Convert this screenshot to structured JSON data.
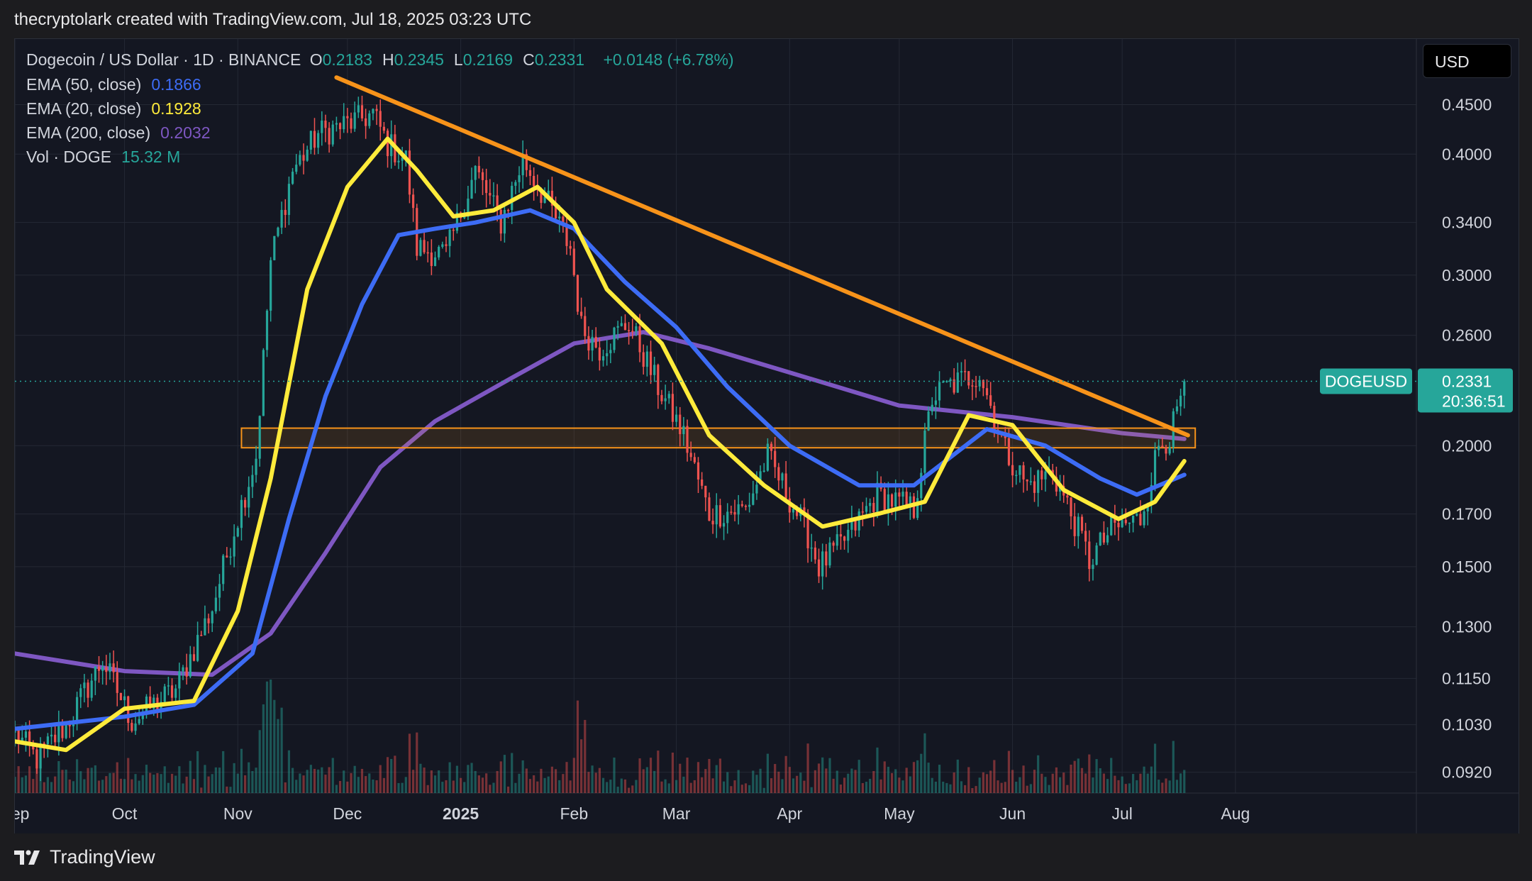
{
  "header": {
    "credit": "thecryptolark created with TradingView.com, Jul 18, 2025 03:23 UTC"
  },
  "legend": {
    "symbol": "Dogecoin / US Dollar · 1D · BINANCE",
    "ohlc": [
      {
        "k": "O",
        "v": "0.2183"
      },
      {
        "k": "H",
        "v": "0.2345"
      },
      {
        "k": "L",
        "v": "0.2169"
      },
      {
        "k": "C",
        "v": "0.2331"
      }
    ],
    "change": "+0.0148 (+6.78%)",
    "indicators": [
      {
        "label": "EMA (50, close)",
        "value": "0.1866",
        "color": "#3d6cf5"
      },
      {
        "label": "EMA (20, close)",
        "value": "0.1928",
        "color": "#ffeb3b"
      },
      {
        "label": "EMA (200, close)",
        "value": "0.2032",
        "color": "#7e57c2"
      },
      {
        "label": "Vol · DOGE",
        "value": "15.32 M",
        "color": "#26a69a"
      }
    ]
  },
  "currency": "USD",
  "price_tag": {
    "symbol": "DOGEUSD",
    "price": "0.2331",
    "countdown": "20:36:51",
    "color": "#26a69a"
  },
  "footer": {
    "brand": "TradingView"
  },
  "colors": {
    "up": "#26a69a",
    "down": "#ef5350",
    "trendline": "#f7931a",
    "zone": "#f7931a",
    "grid": "#242834",
    "background": "#141722"
  },
  "chart_data": {
    "type": "candlestick",
    "title": "Dogecoin / US Dollar · 1D · BINANCE",
    "y_scale": "log",
    "y_ticks": [
      "0.4500",
      "0.4000",
      "0.3400",
      "0.3000",
      "0.2600",
      "0.2000",
      "0.1700",
      "0.1500",
      "0.1300",
      "0.1150",
      "0.1030",
      "0.0920"
    ],
    "x_ticks": [
      "Sep",
      "Oct",
      "Nov",
      "Dec",
      "2025",
      "Feb",
      "Mar",
      "Apr",
      "May",
      "Jun",
      "Jul",
      "Aug"
    ],
    "x_range": [
      "2024-09-01",
      "2025-08-28"
    ],
    "y_range": [
      0.088,
      0.5
    ],
    "price_anchors": [
      {
        "date": "2024-09-01",
        "close": 0.101
      },
      {
        "date": "2024-09-07",
        "close": 0.095
      },
      {
        "date": "2024-09-15",
        "close": 0.103
      },
      {
        "date": "2024-09-25",
        "close": 0.12
      },
      {
        "date": "2024-10-03",
        "close": 0.104
      },
      {
        "date": "2024-10-15",
        "close": 0.112
      },
      {
        "date": "2024-10-25",
        "close": 0.136
      },
      {
        "date": "2024-10-31",
        "close": 0.164
      },
      {
        "date": "2024-11-06",
        "close": 0.195
      },
      {
        "date": "2024-11-10",
        "close": 0.31
      },
      {
        "date": "2024-11-16",
        "close": 0.385
      },
      {
        "date": "2024-11-23",
        "close": 0.42
      },
      {
        "date": "2024-12-01",
        "close": 0.43
      },
      {
        "date": "2024-12-08",
        "close": 0.44
      },
      {
        "date": "2024-12-12",
        "close": 0.41
      },
      {
        "date": "2024-12-17",
        "close": 0.395
      },
      {
        "date": "2024-12-20",
        "close": 0.32
      },
      {
        "date": "2024-12-28",
        "close": 0.315
      },
      {
        "date": "2025-01-05",
        "close": 0.385
      },
      {
        "date": "2025-01-12",
        "close": 0.34
      },
      {
        "date": "2025-01-18",
        "close": 0.395
      },
      {
        "date": "2025-01-25",
        "close": 0.355
      },
      {
        "date": "2025-01-31",
        "close": 0.32
      },
      {
        "date": "2025-02-03",
        "close": 0.265
      },
      {
        "date": "2025-02-08",
        "close": 0.252
      },
      {
        "date": "2025-02-16",
        "close": 0.268
      },
      {
        "date": "2025-02-24",
        "close": 0.23
      },
      {
        "date": "2025-03-03",
        "close": 0.205
      },
      {
        "date": "2025-03-10",
        "close": 0.17
      },
      {
        "date": "2025-03-20",
        "close": 0.172
      },
      {
        "date": "2025-03-26",
        "close": 0.195
      },
      {
        "date": "2025-04-06",
        "close": 0.162
      },
      {
        "date": "2025-04-09",
        "close": 0.15
      },
      {
        "date": "2025-04-15",
        "close": 0.158
      },
      {
        "date": "2025-04-25",
        "close": 0.178
      },
      {
        "date": "2025-05-05",
        "close": 0.172
      },
      {
        "date": "2025-05-10",
        "close": 0.224
      },
      {
        "date": "2025-05-14",
        "close": 0.23
      },
      {
        "date": "2025-05-23",
        "close": 0.238
      },
      {
        "date": "2025-05-30",
        "close": 0.198
      },
      {
        "date": "2025-06-05",
        "close": 0.182
      },
      {
        "date": "2025-06-12",
        "close": 0.188
      },
      {
        "date": "2025-06-20",
        "close": 0.16
      },
      {
        "date": "2025-06-22",
        "close": 0.152
      },
      {
        "date": "2025-06-28",
        "close": 0.164
      },
      {
        "date": "2025-07-06",
        "close": 0.168
      },
      {
        "date": "2025-07-11",
        "close": 0.2
      },
      {
        "date": "2025-07-14",
        "close": 0.205
      },
      {
        "date": "2025-07-16",
        "close": 0.215
      },
      {
        "date": "2025-07-18",
        "close": 0.2331
      }
    ],
    "ema_50": [
      {
        "date": "2024-09-01",
        "value": 0.102
      },
      {
        "date": "2024-10-01",
        "value": 0.105
      },
      {
        "date": "2024-10-20",
        "value": 0.108
      },
      {
        "date": "2024-11-05",
        "value": 0.122
      },
      {
        "date": "2024-11-15",
        "value": 0.168
      },
      {
        "date": "2024-11-25",
        "value": 0.225
      },
      {
        "date": "2024-12-05",
        "value": 0.28
      },
      {
        "date": "2024-12-15",
        "value": 0.33
      },
      {
        "date": "2024-12-25",
        "value": 0.335
      },
      {
        "date": "2025-01-05",
        "value": 0.34
      },
      {
        "date": "2025-01-20",
        "value": 0.35
      },
      {
        "date": "2025-02-01",
        "value": 0.335
      },
      {
        "date": "2025-02-15",
        "value": 0.295
      },
      {
        "date": "2025-03-01",
        "value": 0.265
      },
      {
        "date": "2025-03-15",
        "value": 0.23
      },
      {
        "date": "2025-04-01",
        "value": 0.2
      },
      {
        "date": "2025-04-20",
        "value": 0.182
      },
      {
        "date": "2025-05-05",
        "value": 0.182
      },
      {
        "date": "2025-05-25",
        "value": 0.208
      },
      {
        "date": "2025-06-10",
        "value": 0.2
      },
      {
        "date": "2025-06-25",
        "value": 0.185
      },
      {
        "date": "2025-07-05",
        "value": 0.178
      },
      {
        "date": "2025-07-18",
        "value": 0.1866
      }
    ],
    "ema_20": [
      {
        "date": "2024-09-01",
        "value": 0.099
      },
      {
        "date": "2024-09-15",
        "value": 0.097
      },
      {
        "date": "2024-10-01",
        "value": 0.107
      },
      {
        "date": "2024-10-20",
        "value": 0.109
      },
      {
        "date": "2024-11-01",
        "value": 0.135
      },
      {
        "date": "2024-11-10",
        "value": 0.185
      },
      {
        "date": "2024-11-20",
        "value": 0.29
      },
      {
        "date": "2024-12-01",
        "value": 0.37
      },
      {
        "date": "2024-12-12",
        "value": 0.415
      },
      {
        "date": "2024-12-20",
        "value": 0.385
      },
      {
        "date": "2024-12-30",
        "value": 0.345
      },
      {
        "date": "2025-01-10",
        "value": 0.35
      },
      {
        "date": "2025-01-22",
        "value": 0.37
      },
      {
        "date": "2025-02-01",
        "value": 0.34
      },
      {
        "date": "2025-02-10",
        "value": 0.29
      },
      {
        "date": "2025-02-25",
        "value": 0.255
      },
      {
        "date": "2025-03-10",
        "value": 0.205
      },
      {
        "date": "2025-03-25",
        "value": 0.182
      },
      {
        "date": "2025-04-10",
        "value": 0.165
      },
      {
        "date": "2025-04-25",
        "value": 0.17
      },
      {
        "date": "2025-05-08",
        "value": 0.175
      },
      {
        "date": "2025-05-20",
        "value": 0.215
      },
      {
        "date": "2025-06-01",
        "value": 0.21
      },
      {
        "date": "2025-06-15",
        "value": 0.18
      },
      {
        "date": "2025-06-30",
        "value": 0.168
      },
      {
        "date": "2025-07-10",
        "value": 0.175
      },
      {
        "date": "2025-07-18",
        "value": 0.1928
      }
    ],
    "ema_200": [
      {
        "date": "2024-09-01",
        "value": 0.122
      },
      {
        "date": "2024-10-01",
        "value": 0.117
      },
      {
        "date": "2024-10-25",
        "value": 0.116
      },
      {
        "date": "2024-11-10",
        "value": 0.128
      },
      {
        "date": "2024-11-25",
        "value": 0.155
      },
      {
        "date": "2024-12-10",
        "value": 0.19
      },
      {
        "date": "2024-12-25",
        "value": 0.212
      },
      {
        "date": "2025-01-15",
        "value": 0.235
      },
      {
        "date": "2025-02-01",
        "value": 0.255
      },
      {
        "date": "2025-02-20",
        "value": 0.262
      },
      {
        "date": "2025-03-10",
        "value": 0.252
      },
      {
        "date": "2025-04-01",
        "value": 0.238
      },
      {
        "date": "2025-05-01",
        "value": 0.22
      },
      {
        "date": "2025-06-01",
        "value": 0.214
      },
      {
        "date": "2025-07-01",
        "value": 0.206
      },
      {
        "date": "2025-07-18",
        "value": 0.2032
      }
    ],
    "trendline": {
      "from": {
        "date": "2024-11-28",
        "value": 0.48
      },
      "to": {
        "date": "2025-07-19",
        "value": 0.205
      }
    },
    "support_zone": {
      "from_date": "2024-11-02",
      "to_date": "2025-07-21",
      "low": 0.199,
      "high": 0.2085
    },
    "last_price": 0.2331,
    "volume_unit": "DOGE",
    "last_volume": "15.32 M"
  }
}
